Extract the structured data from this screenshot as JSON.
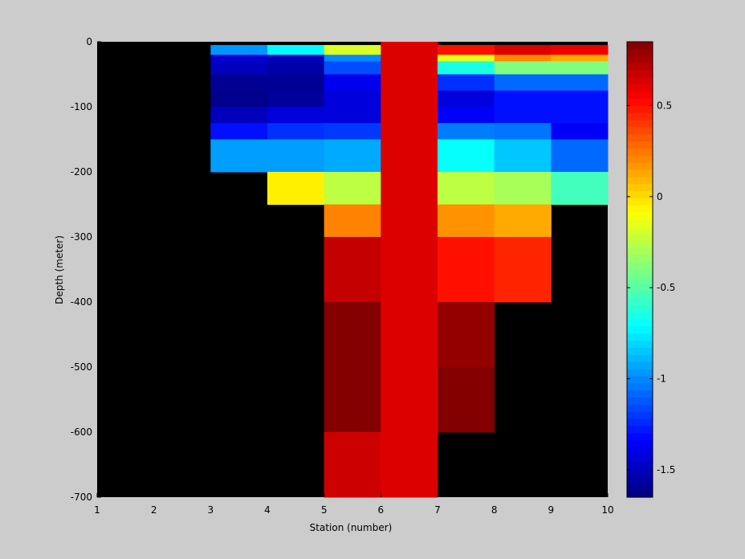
{
  "chart_data": {
    "type": "heatmap",
    "title": "",
    "xlabel": "Station (number)",
    "ylabel": "Depth (meter)",
    "xlim": [
      1,
      10
    ],
    "ylim": [
      -700,
      0
    ],
    "xticks": [
      1,
      2,
      3,
      4,
      5,
      6,
      7,
      8,
      9,
      10
    ],
    "yticks": [
      0,
      -100,
      -200,
      -300,
      -400,
      -500,
      -600,
      -700
    ],
    "x_edges": [
      1,
      2,
      3,
      4,
      5,
      6,
      7,
      8,
      9,
      10
    ],
    "depth_edges": [
      0,
      -5,
      -20,
      -30,
      -50,
      -75,
      -100,
      -125,
      -150,
      -200,
      -250,
      -300,
      -400,
      -500,
      -600,
      -700
    ],
    "missing_color": "#000000",
    "colorbar": {
      "colormap": "jet",
      "clim": [
        -1.65,
        0.85
      ],
      "ticks": [
        0.5,
        0,
        -0.5,
        -1,
        -1.5
      ]
    },
    "values": [
      [
        null,
        null,
        null,
        null,
        null,
        0.62,
        null,
        null,
        null
      ],
      [
        null,
        null,
        -0.97,
        -0.72,
        -0.18,
        0.62,
        0.5,
        0.62,
        0.58
      ],
      [
        null,
        null,
        -1.45,
        -1.5,
        -1.0,
        0.62,
        -0.15,
        0.2,
        0.12
      ],
      [
        null,
        null,
        -1.5,
        -1.55,
        -1.15,
        0.62,
        -0.65,
        -0.4,
        -0.4
      ],
      [
        null,
        null,
        -1.6,
        -1.6,
        -1.38,
        0.62,
        -1.22,
        -1.08,
        -1.08
      ],
      [
        null,
        null,
        -1.62,
        -1.58,
        -1.42,
        0.62,
        -1.42,
        -1.3,
        -1.3
      ],
      [
        null,
        null,
        -1.5,
        -1.42,
        -1.42,
        0.62,
        -1.35,
        -1.3,
        -1.3
      ],
      [
        null,
        null,
        -1.3,
        -1.22,
        -1.2,
        0.62,
        -1.03,
        -1.05,
        -1.35
      ],
      [
        null,
        null,
        -0.95,
        -0.95,
        -0.92,
        0.62,
        -0.7,
        -0.85,
        -1.08
      ],
      [
        null,
        null,
        null,
        -0.05,
        -0.25,
        0.62,
        -0.25,
        -0.3,
        -0.55
      ],
      [
        null,
        null,
        null,
        null,
        0.22,
        0.62,
        0.18,
        0.12,
        null
      ],
      [
        null,
        null,
        null,
        null,
        0.68,
        0.62,
        0.5,
        0.45,
        null
      ],
      [
        null,
        null,
        null,
        null,
        0.84,
        0.62,
        0.8,
        null,
        null
      ],
      [
        null,
        null,
        null,
        null,
        0.84,
        0.62,
        0.84,
        null,
        null
      ],
      [
        null,
        null,
        null,
        null,
        0.66,
        0.62,
        null,
        null,
        null
      ]
    ]
  }
}
